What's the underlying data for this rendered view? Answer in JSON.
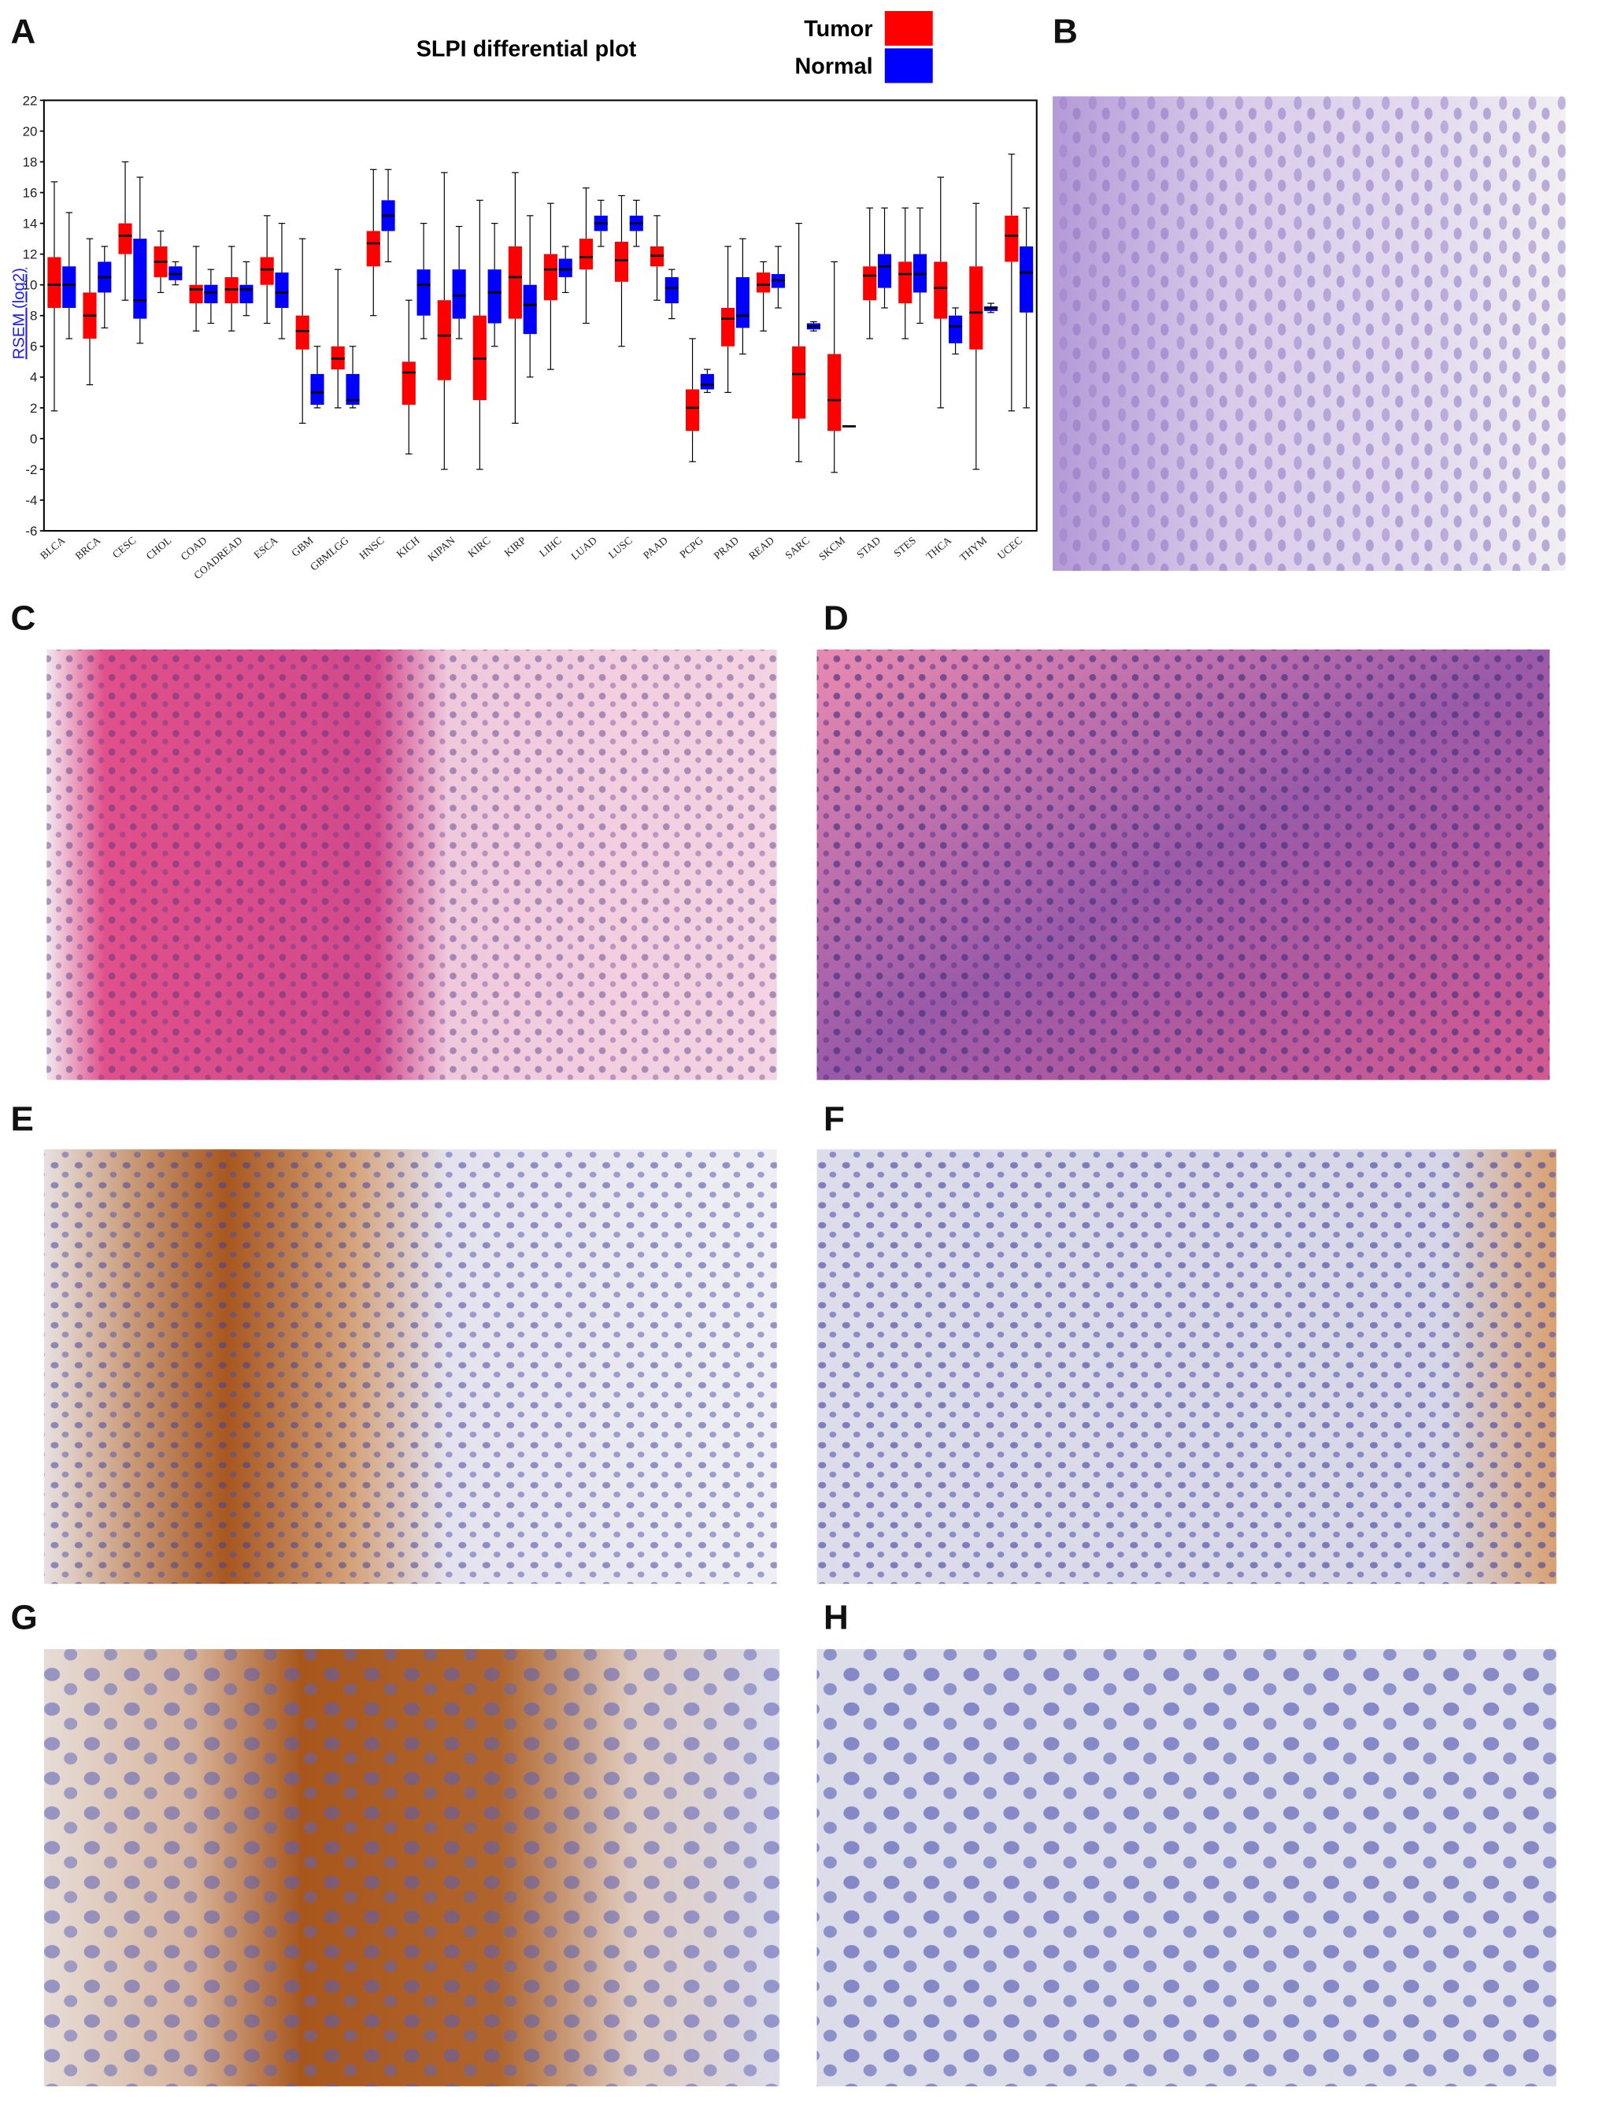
{
  "chart_data": {
    "type": "boxplot",
    "title": "SLPI differential plot",
    "y_label": "RSEM (log2)",
    "categories": [
      "BLCA",
      "BRCA",
      "CESC",
      "CHOL",
      "COAD",
      "COADREAD",
      "ESCA",
      "GBM",
      "GBMLGG",
      "HNSC",
      "KICH",
      "KIPAN",
      "KIRC",
      "KIRP",
      "LIHC",
      "LUAD",
      "LUSC",
      "PAAD",
      "PCPG",
      "PRAD",
      "READ",
      "SARC",
      "SKCM",
      "STAD",
      "STES",
      "THCA",
      "THYM",
      "UCEC"
    ],
    "series": [
      {
        "name": "Tumor",
        "color": "#ff0000",
        "min": [
          1.8,
          3.5,
          9,
          9.5,
          7,
          7,
          7.5,
          1,
          2,
          8,
          -1,
          -2,
          -2,
          1,
          4.5,
          7.5,
          6,
          9,
          -1.5,
          3,
          7,
          -1.5,
          -2.2,
          6.5,
          6.5,
          2,
          -2,
          1.8
        ],
        "q1": [
          8.5,
          6.5,
          12,
          10.5,
          8.8,
          8.8,
          10,
          5.8,
          4.5,
          11.2,
          2.2,
          3.8,
          2.5,
          7.8,
          9,
          11,
          10.2,
          11.2,
          0.5,
          6,
          9.5,
          1.3,
          0.5,
          9,
          8.8,
          7.8,
          5.8,
          11.5
        ],
        "median": [
          10,
          8,
          13.2,
          11.5,
          9.7,
          9.7,
          11,
          7,
          5.2,
          12.7,
          4.3,
          6.7,
          5.2,
          10.5,
          11,
          11.8,
          11.6,
          11.9,
          2,
          7.8,
          10,
          4.2,
          2.5,
          10.6,
          10.7,
          9.8,
          8.2,
          13.2
        ],
        "q3": [
          11.8,
          9.5,
          14,
          12.5,
          10,
          10.5,
          11.8,
          8,
          6,
          13.5,
          5,
          9,
          8,
          12.5,
          12,
          13,
          12.8,
          12.5,
          3.2,
          8.5,
          10.8,
          6,
          5.5,
          11.2,
          11.5,
          11.5,
          11.2,
          14.5
        ],
        "max": [
          16.7,
          13,
          18,
          13.5,
          12.5,
          12.5,
          14.5,
          13,
          11,
          17.5,
          9,
          17.3,
          15.5,
          17.3,
          15.3,
          16.3,
          15.8,
          14.5,
          6.5,
          12.5,
          11.5,
          14,
          11.5,
          15,
          15,
          17,
          15.3,
          18.5
        ]
      },
      {
        "name": "Normal",
        "color": "#0000ff",
        "min": [
          6.5,
          7.2,
          6.2,
          10,
          7.5,
          8,
          6.5,
          2,
          2,
          11.5,
          6.5,
          6.5,
          6,
          4,
          9.5,
          12.5,
          12.5,
          7.8,
          3,
          5.5,
          8.5,
          7,
          0.8,
          8.5,
          7.5,
          5.5,
          8.2,
          2
        ],
        "q1": [
          8.5,
          9.5,
          7.8,
          10.3,
          8.8,
          8.8,
          8.5,
          2.2,
          2.2,
          13.5,
          8,
          7.8,
          7.5,
          6.8,
          10.5,
          13.5,
          13.5,
          8.8,
          3.2,
          7.2,
          9.8,
          7.1,
          0.8,
          9.8,
          9.5,
          6.2,
          8.3,
          8.2
        ],
        "median": [
          10,
          10.5,
          9,
          10.7,
          9.5,
          9.7,
          9.5,
          3,
          2.5,
          14.5,
          10,
          9.3,
          9.5,
          8.7,
          11,
          14,
          14,
          9.8,
          3.5,
          8,
          10.3,
          7.3,
          0.8,
          11.2,
          10.7,
          7.3,
          8.5,
          10.8
        ],
        "q3": [
          11.2,
          11.5,
          13,
          11.2,
          10,
          10,
          10.8,
          4.2,
          4.2,
          15.5,
          11,
          11,
          11,
          10,
          11.7,
          14.5,
          14.5,
          10.5,
          4.2,
          10.5,
          10.7,
          7.5,
          0.8,
          12,
          12,
          8,
          8.6,
          12.5
        ],
        "max": [
          14.7,
          12.5,
          17,
          11.5,
          11,
          11.5,
          14,
          6,
          6,
          17.5,
          14,
          13.8,
          14,
          14.5,
          12.5,
          15.5,
          15.5,
          11,
          4.5,
          13,
          12.5,
          7.6,
          0.8,
          15,
          15,
          8.5,
          8.8,
          15
        ]
      }
    ],
    "ylim": [
      -6,
      22
    ],
    "yticks": [
      -6,
      -4,
      -2,
      0,
      2,
      4,
      6,
      8,
      10,
      12,
      14,
      16,
      18,
      20,
      22
    ],
    "legend": "top-right"
  },
  "panel_labels": [
    "A",
    "B",
    "C",
    "D",
    "E",
    "F",
    "G",
    "H"
  ]
}
